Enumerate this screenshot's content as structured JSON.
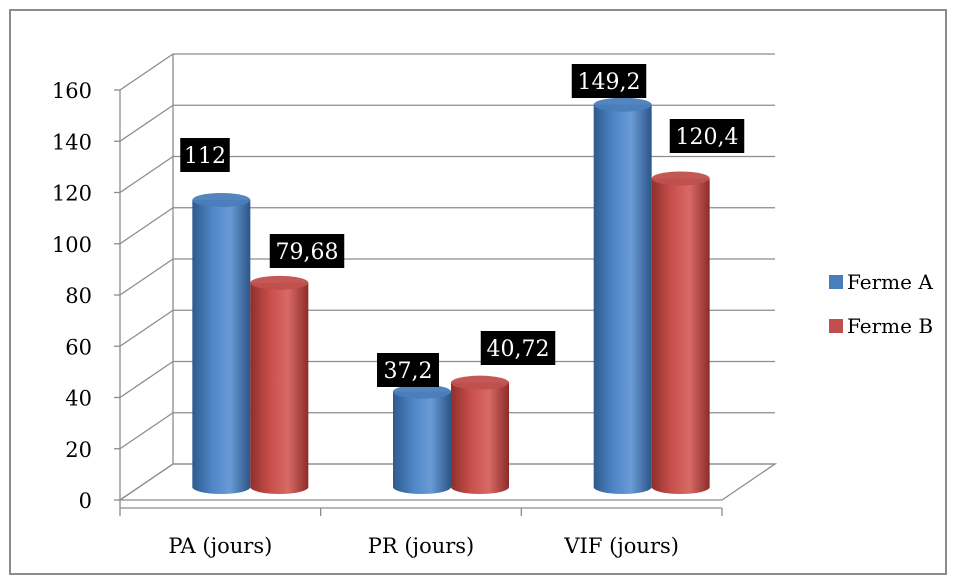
{
  "chart_data": {
    "type": "bar",
    "categories": [
      "PA (jours)",
      "PR (jours)",
      "VIF (jours)"
    ],
    "series": [
      {
        "name": "Ferme A",
        "values": [
          112,
          37.2,
          149.2
        ],
        "labels": [
          "112",
          "37,2",
          "149,2"
        ],
        "color": "#4a7ebb"
      },
      {
        "name": "Ferme B",
        "values": [
          79.68,
          40.72,
          120.4
        ],
        "labels": [
          "79,68",
          "40,72",
          "120,4"
        ],
        "color": "#c0504d"
      }
    ],
    "ylim": [
      0,
      160
    ],
    "yticks": [
      "0",
      "20",
      "40",
      "60",
      "80",
      "100",
      "120",
      "140",
      "160"
    ],
    "grid": true,
    "legend": "right",
    "title": "",
    "xlabel": "",
    "ylabel": ""
  }
}
